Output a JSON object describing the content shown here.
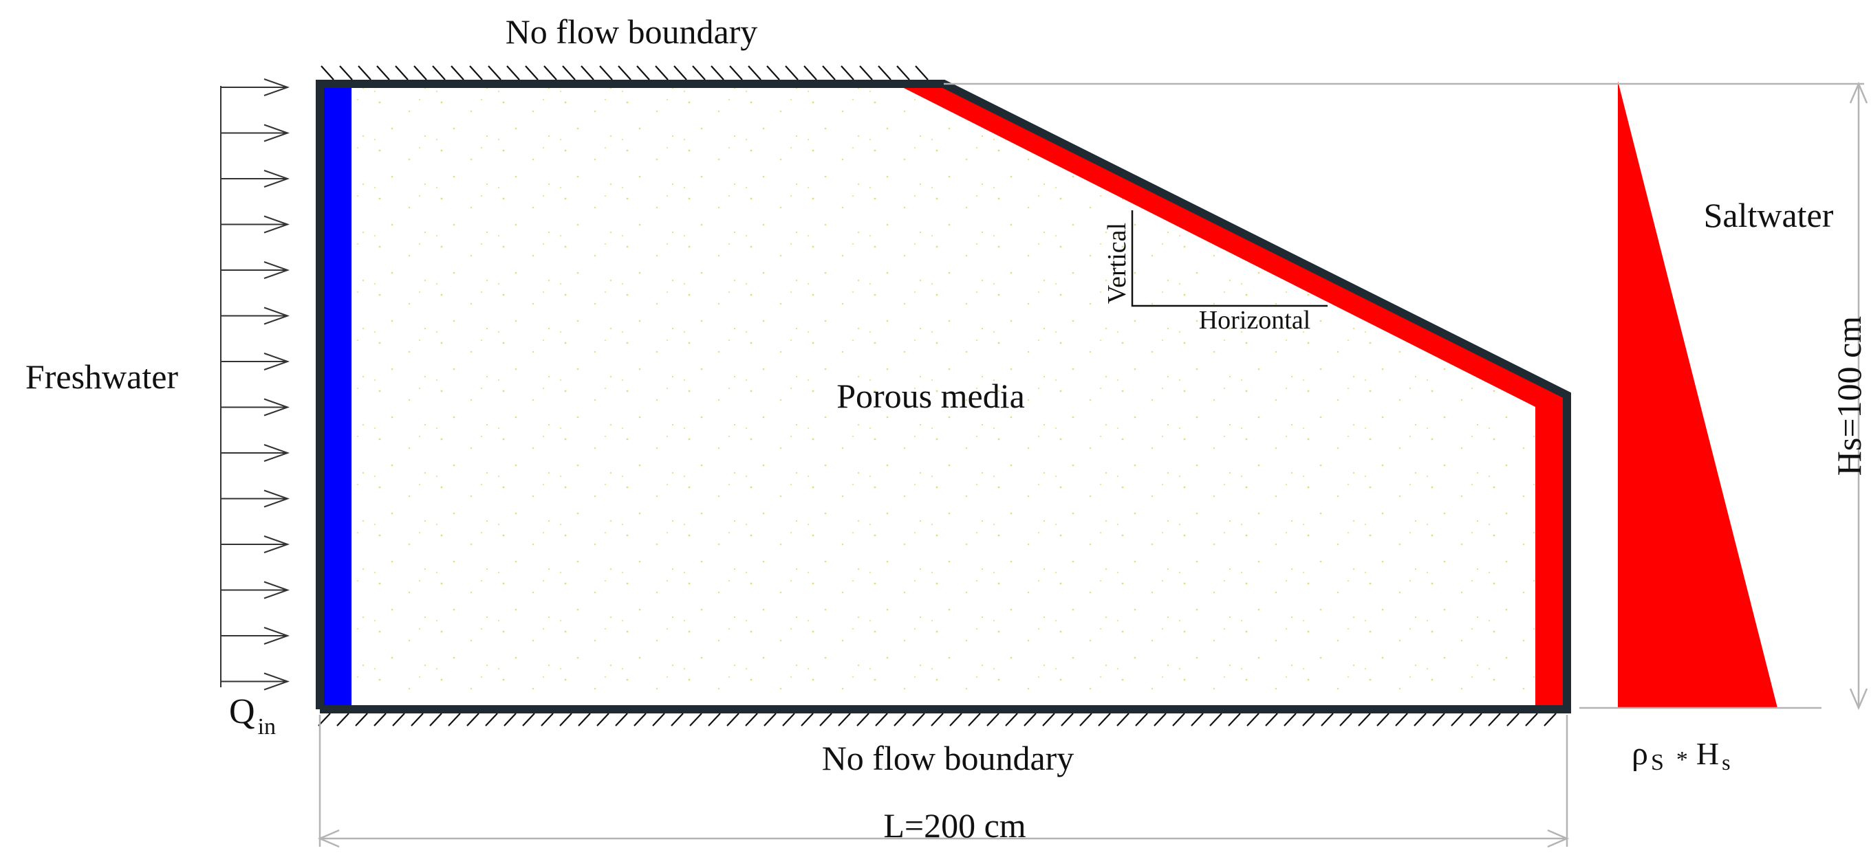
{
  "labels": {
    "top_boundary": "No flow boundary",
    "bottom_boundary": "No flow boundary",
    "freshwater": "Freshwater",
    "saltwater": "Saltwater",
    "porous_media": "Porous media",
    "vertical": "Vertical",
    "horizontal": "Horizontal",
    "q_main": "Q",
    "q_sub": "in",
    "length": "L=200 cm",
    "height": "Hs=100 cm",
    "pressure_rho": "ρ",
    "pressure_rho_sub": "S",
    "pressure_times": "*",
    "pressure_h": "H",
    "pressure_h_sub": "s"
  },
  "colors": {
    "freshwater_boundary": "#0000ff",
    "saltwater_boundary": "#ff0000",
    "saltwater_pressure": "#ff0000",
    "domain_outline": "#1f2a33",
    "sand_speckle": "#e8dc7a",
    "dimension_line": "#b4b4b4"
  }
}
